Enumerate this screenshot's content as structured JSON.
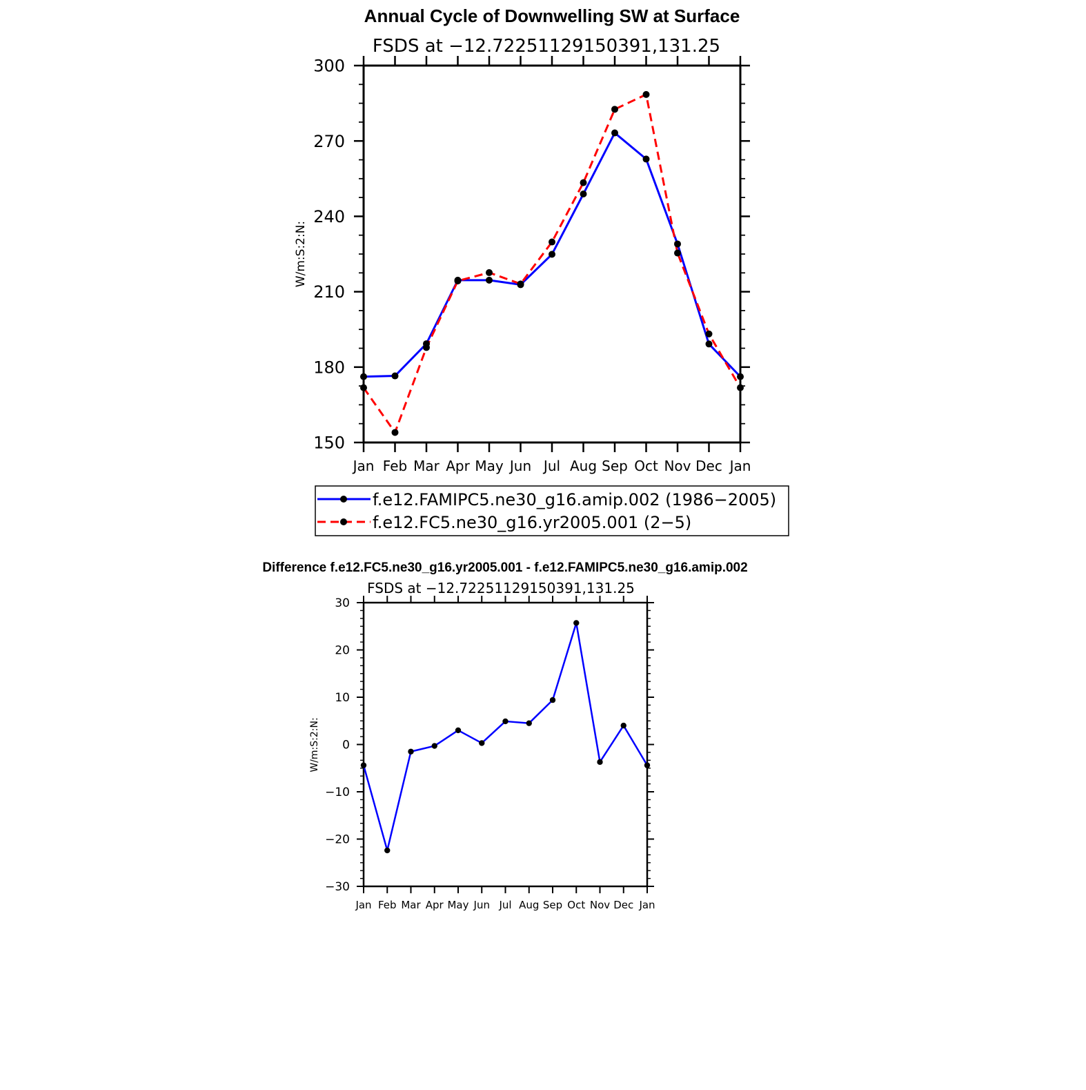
{
  "chart_data": [
    {
      "type": "line",
      "title": "Annual Cycle of Downwelling SW at Surface",
      "subtitle": "FSDS at −12.72251129150391,131.25",
      "ylabel": "W/m:S:2:N:",
      "xlabel": "",
      "categories": [
        "Jan",
        "Feb",
        "Mar",
        "Apr",
        "May",
        "Jun",
        "Jul",
        "Aug",
        "Sep",
        "Oct",
        "Nov",
        "Dec",
        "Jan"
      ],
      "ylim": [
        150,
        300
      ],
      "yticks": [
        150,
        180,
        210,
        240,
        270,
        300
      ],
      "ytick_labels": [
        "150",
        "180",
        "210",
        "240",
        "270",
        "300"
      ],
      "grid": false,
      "legend": "bottom",
      "series": [
        {
          "name": "f.e12.FAMIPC5.ne30_g16.amip.002 (1986−2005)",
          "color": "#0000ff",
          "dash": "solid",
          "values": [
            176.2,
            176.5,
            189.3,
            214.6,
            214.6,
            212.8,
            224.9,
            248.9,
            273.2,
            262.8,
            229.0,
            189.2,
            176.2
          ]
        },
        {
          "name": "f.e12.FC5.ne30_g16.yr2005.001 (2−5)",
          "color": "#ff0000",
          "dash": "dashed",
          "values": [
            171.8,
            154.0,
            187.8,
            214.3,
            217.6,
            213.1,
            229.8,
            253.4,
            282.6,
            288.5,
            225.4,
            193.2,
            171.8
          ]
        }
      ]
    },
    {
      "type": "line",
      "title": "Difference f.e12.FC5.ne30_g16.yr2005.001 - f.e12.FAMIPC5.ne30_g16.amip.002",
      "subtitle": "FSDS at −12.72251129150391,131.25",
      "ylabel": "W/m:S:2:N:",
      "xlabel": "",
      "categories": [
        "Jan",
        "Feb",
        "Mar",
        "Apr",
        "May",
        "Jun",
        "Jul",
        "Aug",
        "Sep",
        "Oct",
        "Nov",
        "Dec",
        "Jan"
      ],
      "ylim": [
        -30,
        30
      ],
      "yticks": [
        -30,
        -20,
        -10,
        0,
        10,
        20,
        30
      ],
      "ytick_labels": [
        "−30",
        "−20",
        "−10",
        "0",
        "10",
        "20",
        "30"
      ],
      "grid": false,
      "series": [
        {
          "color": "#0000ff",
          "dash": "solid",
          "values": [
            -4.4,
            -22.4,
            -1.5,
            -0.3,
            3.0,
            0.3,
            4.9,
            4.5,
            9.4,
            25.7,
            -3.7,
            4.0,
            -4.4
          ]
        }
      ]
    }
  ]
}
